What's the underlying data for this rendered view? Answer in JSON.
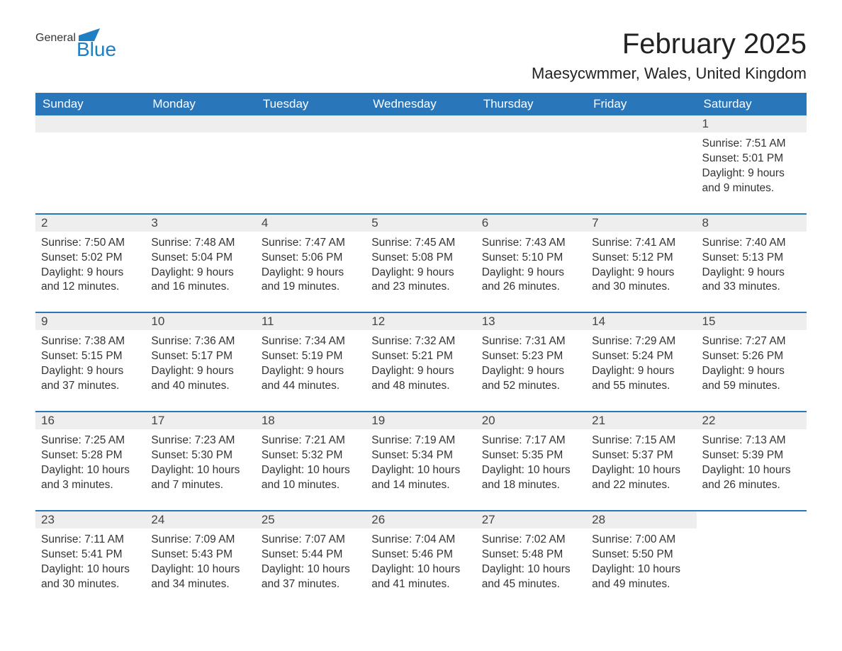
{
  "logo": {
    "general": "General",
    "blue": "Blue",
    "flag_color": "#1f7fc4",
    "text_color": "#333333"
  },
  "title": "February 2025",
  "subtitle": "Maesycwmmer, Wales, United Kingdom",
  "colors": {
    "header_bg": "#2a76bb",
    "header_text": "#ffffff",
    "daynum_bg": "#eeeeee",
    "week_border": "#2a76bb",
    "body_text": "#333333",
    "background": "#ffffff"
  },
  "days_of_week": [
    "Sunday",
    "Monday",
    "Tuesday",
    "Wednesday",
    "Thursday",
    "Friday",
    "Saturday"
  ],
  "weeks": [
    [
      null,
      null,
      null,
      null,
      null,
      null,
      {
        "n": "1",
        "sunrise": "7:51 AM",
        "sunset": "5:01 PM",
        "daylight": "9 hours and 9 minutes."
      }
    ],
    [
      {
        "n": "2",
        "sunrise": "7:50 AM",
        "sunset": "5:02 PM",
        "daylight": "9 hours and 12 minutes."
      },
      {
        "n": "3",
        "sunrise": "7:48 AM",
        "sunset": "5:04 PM",
        "daylight": "9 hours and 16 minutes."
      },
      {
        "n": "4",
        "sunrise": "7:47 AM",
        "sunset": "5:06 PM",
        "daylight": "9 hours and 19 minutes."
      },
      {
        "n": "5",
        "sunrise": "7:45 AM",
        "sunset": "5:08 PM",
        "daylight": "9 hours and 23 minutes."
      },
      {
        "n": "6",
        "sunrise": "7:43 AM",
        "sunset": "5:10 PM",
        "daylight": "9 hours and 26 minutes."
      },
      {
        "n": "7",
        "sunrise": "7:41 AM",
        "sunset": "5:12 PM",
        "daylight": "9 hours and 30 minutes."
      },
      {
        "n": "8",
        "sunrise": "7:40 AM",
        "sunset": "5:13 PM",
        "daylight": "9 hours and 33 minutes."
      }
    ],
    [
      {
        "n": "9",
        "sunrise": "7:38 AM",
        "sunset": "5:15 PM",
        "daylight": "9 hours and 37 minutes."
      },
      {
        "n": "10",
        "sunrise": "7:36 AM",
        "sunset": "5:17 PM",
        "daylight": "9 hours and 40 minutes."
      },
      {
        "n": "11",
        "sunrise": "7:34 AM",
        "sunset": "5:19 PM",
        "daylight": "9 hours and 44 minutes."
      },
      {
        "n": "12",
        "sunrise": "7:32 AM",
        "sunset": "5:21 PM",
        "daylight": "9 hours and 48 minutes."
      },
      {
        "n": "13",
        "sunrise": "7:31 AM",
        "sunset": "5:23 PM",
        "daylight": "9 hours and 52 minutes."
      },
      {
        "n": "14",
        "sunrise": "7:29 AM",
        "sunset": "5:24 PM",
        "daylight": "9 hours and 55 minutes."
      },
      {
        "n": "15",
        "sunrise": "7:27 AM",
        "sunset": "5:26 PM",
        "daylight": "9 hours and 59 minutes."
      }
    ],
    [
      {
        "n": "16",
        "sunrise": "7:25 AM",
        "sunset": "5:28 PM",
        "daylight": "10 hours and 3 minutes."
      },
      {
        "n": "17",
        "sunrise": "7:23 AM",
        "sunset": "5:30 PM",
        "daylight": "10 hours and 7 minutes."
      },
      {
        "n": "18",
        "sunrise": "7:21 AM",
        "sunset": "5:32 PM",
        "daylight": "10 hours and 10 minutes."
      },
      {
        "n": "19",
        "sunrise": "7:19 AM",
        "sunset": "5:34 PM",
        "daylight": "10 hours and 14 minutes."
      },
      {
        "n": "20",
        "sunrise": "7:17 AM",
        "sunset": "5:35 PM",
        "daylight": "10 hours and 18 minutes."
      },
      {
        "n": "21",
        "sunrise": "7:15 AM",
        "sunset": "5:37 PM",
        "daylight": "10 hours and 22 minutes."
      },
      {
        "n": "22",
        "sunrise": "7:13 AM",
        "sunset": "5:39 PM",
        "daylight": "10 hours and 26 minutes."
      }
    ],
    [
      {
        "n": "23",
        "sunrise": "7:11 AM",
        "sunset": "5:41 PM",
        "daylight": "10 hours and 30 minutes."
      },
      {
        "n": "24",
        "sunrise": "7:09 AM",
        "sunset": "5:43 PM",
        "daylight": "10 hours and 34 minutes."
      },
      {
        "n": "25",
        "sunrise": "7:07 AM",
        "sunset": "5:44 PM",
        "daylight": "10 hours and 37 minutes."
      },
      {
        "n": "26",
        "sunrise": "7:04 AM",
        "sunset": "5:46 PM",
        "daylight": "10 hours and 41 minutes."
      },
      {
        "n": "27",
        "sunrise": "7:02 AM",
        "sunset": "5:48 PM",
        "daylight": "10 hours and 45 minutes."
      },
      {
        "n": "28",
        "sunrise": "7:00 AM",
        "sunset": "5:50 PM",
        "daylight": "10 hours and 49 minutes."
      },
      null
    ]
  ],
  "labels": {
    "sunrise": "Sunrise:",
    "sunset": "Sunset:",
    "daylight": "Daylight:"
  }
}
